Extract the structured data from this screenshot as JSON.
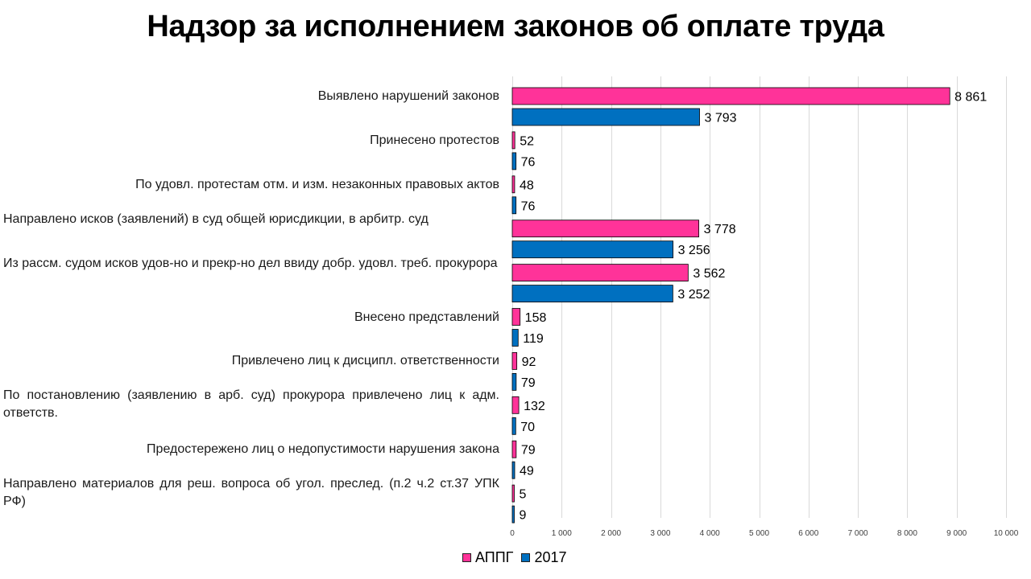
{
  "chart_data": {
    "type": "bar",
    "orientation": "horizontal",
    "title": "Надзор за исполнением законов об оплате труда",
    "categories": [
      "Направлено материалов для реш. вопроса об угол. преслед. (п.2 ч.2 ст.37 УПК РФ)",
      "Предостережено лиц о недопустимости нарушения закона",
      "По постановлению (заявлению в арб. суд) прокурора привлечено лиц к адм. ответств.",
      "Привлечено лиц к дисципл. ответственности",
      "Внесено представлений",
      "Из рассм. судом исков удов-но и прекр-но дел ввиду добр. удовл. треб. прокурора",
      "Направлено исков (заявлений) в суд общей юрисдикции, в арбитр. суд",
      "По удовл. протестам отм. и изм. незаконных правовых актов",
      "Принесено протестов",
      "Выявлено нарушений законов"
    ],
    "series": [
      {
        "name": "АППГ",
        "color": "#ff3399",
        "values": [
          5,
          79,
          132,
          92,
          158,
          3562,
          3778,
          48,
          52,
          8861
        ],
        "labels": [
          "5",
          "79",
          "132",
          "92",
          "158",
          "3 562",
          "3 778",
          "48",
          "52",
          "8 861"
        ]
      },
      {
        "name": "2017",
        "color": "#0070c0",
        "values": [
          9,
          49,
          70,
          79,
          119,
          3252,
          3256,
          76,
          76,
          3793
        ],
        "labels": [
          "9",
          "49",
          "70",
          "79",
          "119",
          "3 252",
          "3 256",
          "76",
          "76",
          "3 793"
        ]
      }
    ],
    "xlim": [
      0,
      10000
    ],
    "xticks": [
      0,
      1000,
      2000,
      3000,
      4000,
      5000,
      6000,
      7000,
      8000,
      9000,
      10000
    ],
    "xtick_labels": [
      "0",
      "1 000",
      "2 000",
      "3 000",
      "4 000",
      "5 000",
      "6 000",
      "7 000",
      "8 000",
      "9 000",
      "10 000"
    ],
    "grid": true,
    "legend_position": "bottom"
  }
}
